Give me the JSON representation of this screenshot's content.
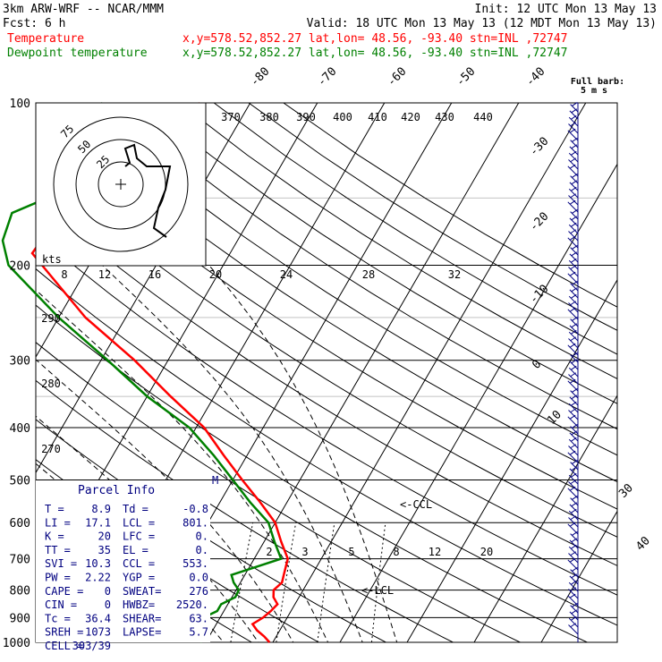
{
  "header": {
    "title": "3km ARW-WRF -- NCAR/MMM",
    "init": "Init: 12 UTC Mon 13 May 13",
    "fcst": "Fcst:     6 h",
    "valid": "Valid: 18 UTC Mon 13 May 13 (12 MDT Mon 13 May 13)",
    "series": [
      {
        "name": "Temperature",
        "info": "x,y=578.52,852.27   lat,lon= 48.56, -93.40   stn=INL ,72747",
        "color": "#ff0000"
      },
      {
        "name": "Dewpoint temperature",
        "info": "x,y=578.52,852.27   lat,lon= 48.56, -93.40   stn=INL ,72747",
        "color": "#008000"
      }
    ]
  },
  "barb_label": "Full barb:",
  "barb_units": "5 m s",
  "chart_data": {
    "type": "line",
    "pressure_levels": [
      "100",
      "200",
      "300",
      "400",
      "500",
      "600",
      "700",
      "800",
      "900",
      "1000"
    ],
    "isotherm_labels": [
      "-80",
      "-70",
      "-60",
      "-50",
      "-40",
      "-30",
      "-20",
      "-10",
      "0",
      "10",
      "30",
      "40"
    ],
    "theta_labels": [
      "370",
      "380",
      "390",
      "400",
      "410",
      "420",
      "430",
      "440",
      "290",
      "280",
      "270"
    ],
    "mixing_ratio_labels": [
      "2",
      "3",
      "5",
      "8",
      "12",
      "20"
    ],
    "hodo_speed_labels": [
      "kts",
      "8",
      "12",
      "16",
      "20",
      "24",
      "28",
      "32"
    ],
    "hodo_ring_labels": [
      "75",
      "50",
      "25"
    ],
    "series": [
      {
        "name": "Temperature",
        "color": "#ff0000",
        "points": [
          [
            1000,
            9.5
          ],
          [
            975,
            8.2
          ],
          [
            950,
            6.6
          ],
          [
            925,
            5.4
          ],
          [
            900,
            6.4
          ],
          [
            875,
            7.0
          ],
          [
            850,
            7.4
          ],
          [
            825,
            6.2
          ],
          [
            800,
            5.6
          ],
          [
            775,
            6.2
          ],
          [
            750,
            5.8
          ],
          [
            700,
            5.0
          ],
          [
            650,
            2.5
          ],
          [
            600,
            0.0
          ],
          [
            550,
            -4.0
          ],
          [
            500,
            -8.6
          ],
          [
            450,
            -13.5
          ],
          [
            400,
            -18.8
          ],
          [
            350,
            -26.5
          ],
          [
            300,
            -35.0
          ],
          [
            250,
            -46.0
          ],
          [
            200,
            -57.0
          ],
          [
            190,
            -59.5
          ],
          [
            170,
            -59.0
          ],
          [
            150,
            -57.0
          ],
          [
            130,
            -52.0
          ],
          [
            115,
            -49.5
          ],
          [
            100,
            -47.5
          ]
        ]
      },
      {
        "name": "Dewpoint temperature",
        "color": "#008000",
        "points": [
          [
            1000,
            -0.8
          ],
          [
            975,
            -1.0
          ],
          [
            950,
            -1.5
          ],
          [
            925,
            -3.0
          ],
          [
            900,
            -2.5
          ],
          [
            875,
            -1.0
          ],
          [
            850,
            -1.0
          ],
          [
            825,
            0.5
          ],
          [
            800,
            0.4
          ],
          [
            775,
            -1.0
          ],
          [
            750,
            -2.0
          ],
          [
            700,
            4.0
          ],
          [
            650,
            1.5
          ],
          [
            600,
            -1.0
          ],
          [
            550,
            -5.5
          ],
          [
            500,
            -10.0
          ],
          [
            450,
            -15.0
          ],
          [
            400,
            -21.0
          ],
          [
            350,
            -30.0
          ],
          [
            300,
            -39.0
          ],
          [
            250,
            -50.0
          ],
          [
            200,
            -62.0
          ],
          [
            180,
            -65.0
          ],
          [
            160,
            -66.0
          ],
          [
            150,
            -62.0
          ],
          [
            130,
            -65.0
          ],
          [
            115,
            -64.0
          ],
          [
            100,
            -62.0
          ]
        ]
      }
    ],
    "wind_barbs_left": true
  },
  "parcel_info": {
    "title": "Parcel Info",
    "rows": [
      [
        "T  =",
        "8.9",
        "Td =",
        "-0.8"
      ],
      [
        "LI =",
        "17.1",
        "LCL =",
        "801."
      ],
      [
        "K  =",
        "20",
        "LFC =",
        "0."
      ],
      [
        "TT =",
        "35",
        "EL  =",
        "0."
      ],
      [
        "SVI =",
        "10.3",
        "CCL =",
        "553."
      ],
      [
        "PW =",
        "2.22",
        "YGP =",
        "0.0"
      ],
      [
        "CAPE =",
        "0",
        "SWEAT=",
        "276"
      ],
      [
        "CIN =",
        "0",
        "HWBZ=",
        "2520."
      ],
      [
        "Tc =",
        "36.4",
        "SHEAR=",
        "63."
      ],
      [
        "SREH =",
        "1073",
        "LAPSE=",
        "5.7"
      ],
      [
        "CELL =",
        "303/39",
        "",
        ""
      ]
    ]
  },
  "annotations": {
    "ccl": "<-CCL",
    "lcl": "<-LCL",
    "marker": "M"
  }
}
